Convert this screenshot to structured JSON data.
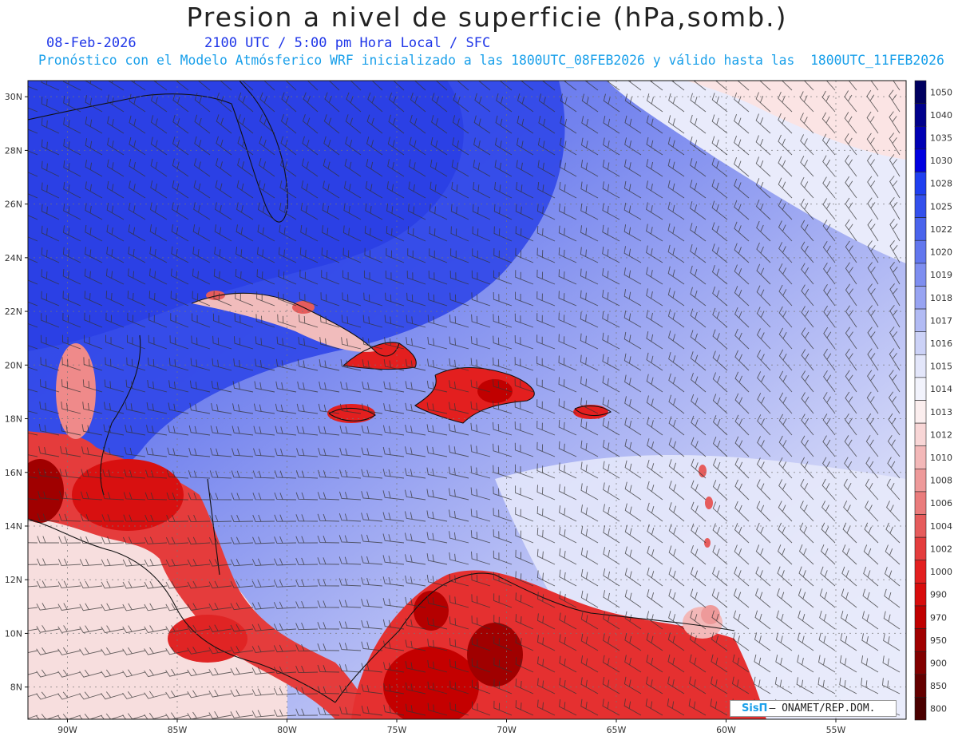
{
  "title": "Presion a nivel de superficie (hPa,somb.)",
  "date": "08-Feb-2026",
  "time_label": "2100 UTC / 5:00 pm Hora Local / SFC",
  "forecast_info": "Pronóstico con el Modelo Atmósferico WRF inicializado a las 1800UTC_08FEB2026 y válido hasta las  1800UTC_11FEB2026",
  "logo": {
    "brand": "SisΠ",
    "org": "– ONAMET/REP.DOM."
  },
  "map": {
    "lat_range": [
      6.8,
      30.6
    ],
    "lon_range": [
      -91.8,
      -51.8
    ],
    "lat_labels": [
      "30N",
      "28N",
      "26N",
      "24N",
      "22N",
      "20N",
      "18N",
      "16N",
      "14N",
      "12N",
      "10N",
      "8N"
    ],
    "lat_values": [
      30,
      28,
      26,
      24,
      22,
      20,
      18,
      16,
      14,
      12,
      10,
      8
    ],
    "lon_labels": [
      "90W",
      "85W",
      "80W",
      "75W",
      "70W",
      "65W",
      "60W",
      "55W"
    ],
    "lon_values": [
      -90,
      -85,
      -80,
      -75,
      -70,
      -65,
      -60,
      -55
    ]
  },
  "colorbar": {
    "levels": [
      "1050",
      "1040",
      "1035",
      "1030",
      "1028",
      "1025",
      "1022",
      "1020",
      "1019",
      "1018",
      "1017",
      "1016",
      "1015",
      "1014",
      "1013",
      "1012",
      "1010",
      "1008",
      "1006",
      "1004",
      "1002",
      "1000",
      "990",
      "970",
      "950",
      "900",
      "850",
      "800"
    ],
    "colors": [
      "#000060",
      "#00008c",
      "#0000b4",
      "#0000e0",
      "#1f3ff0",
      "#3350ec",
      "#4a64ec",
      "#6277ee",
      "#7e8ef0",
      "#98a4f2",
      "#b2bbf4",
      "#ccd2f7",
      "#e3e6fa",
      "#f2f3fc",
      "#fbeeee",
      "#f8d6d6",
      "#f3b8b8",
      "#ee9a9a",
      "#ea7c7c",
      "#e65c5c",
      "#e43d3d",
      "#e31f1f",
      "#d80c0c",
      "#c00000",
      "#a00000",
      "#820000",
      "#640000",
      "#4a0000"
    ]
  },
  "colors": {
    "title": "#222222",
    "date": "#1f36e8",
    "forecast": "#1aa0ea"
  }
}
